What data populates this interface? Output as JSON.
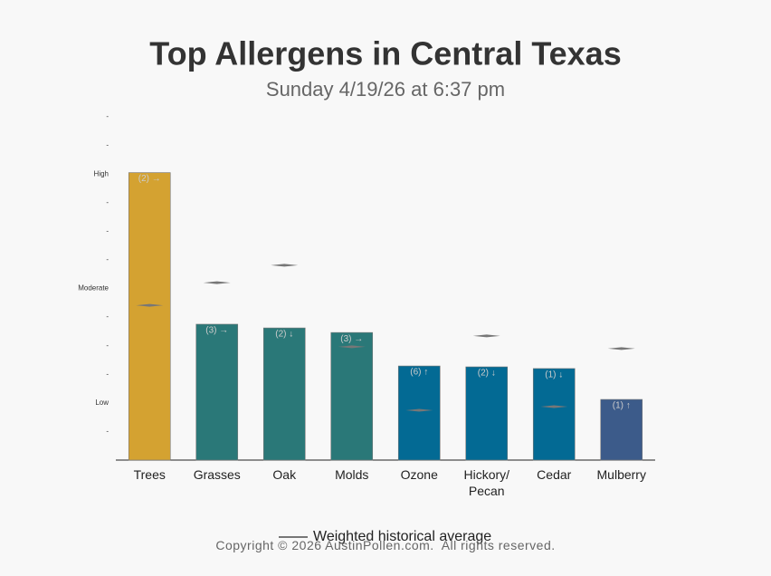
{
  "chart_data": {
    "type": "bar",
    "title": "Top Allergens in Central Texas",
    "subtitle": "Sunday 4/19/26 at 6:37 pm",
    "categories": [
      "Trees",
      "Grasses",
      "Oak",
      "Molds",
      "Ozone",
      "Hickory/ Pecan",
      "Cedar",
      "Mulberry"
    ],
    "values": [
      10.05,
      4.75,
      4.62,
      4.46,
      3.29,
      3.26,
      3.2,
      2.12
    ],
    "colors": [
      "#d4a231",
      "#2a7878",
      "#2a7878",
      "#2a7878",
      "#036a94",
      "#036a94",
      "#036a94",
      "#3c5b8a"
    ],
    "annotations": [
      "(2) →",
      "(3) →",
      "(2) ↓",
      "(3) →",
      "(6) ↑",
      "(2) ↓",
      "(1) ↓",
      "(1) ↑"
    ],
    "series": [
      {
        "name": "Weighted historical average",
        "color": "#777777",
        "values": [
          5.41,
          6.2,
          6.81,
          3.96,
          1.74,
          4.34,
          1.87,
          3.9
        ]
      }
    ],
    "ylim": [
      0,
      12
    ],
    "yticks": [
      {
        "value": 1,
        "label": "-"
      },
      {
        "value": 2,
        "label": "Low"
      },
      {
        "value": 3,
        "label": "-"
      },
      {
        "value": 4,
        "label": "-"
      },
      {
        "value": 5,
        "label": "-"
      },
      {
        "value": 6,
        "label": "Moderate"
      },
      {
        "value": 7,
        "label": "-"
      },
      {
        "value": 8,
        "label": "-"
      },
      {
        "value": 9,
        "label": "-"
      },
      {
        "value": 10,
        "label": "High"
      },
      {
        "value": 11,
        "label": "-"
      },
      {
        "value": 12,
        "label": "-"
      }
    ]
  },
  "footer": "Copyright © 2026 AustinPollen.com.  All rights reserved."
}
